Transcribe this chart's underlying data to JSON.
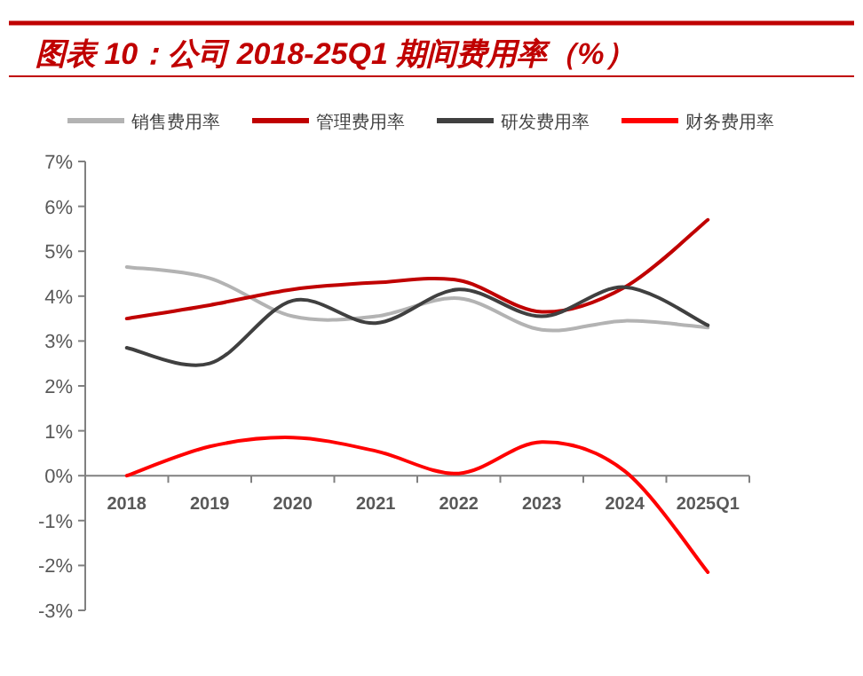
{
  "chart_data": {
    "type": "line",
    "title": "图表 10：公司 2018-25Q1 期间费用率（%）",
    "categories": [
      "2018",
      "2019",
      "2020",
      "2021",
      "2022",
      "2023",
      "2024",
      "2025Q1"
    ],
    "series": [
      {
        "name": "销售费用率",
        "color": "#b3b3b3",
        "values": [
          4.65,
          4.4,
          3.55,
          3.55,
          3.95,
          3.25,
          3.45,
          3.3
        ]
      },
      {
        "name": "管理费用率",
        "color": "#c00000",
        "values": [
          3.5,
          3.8,
          4.15,
          4.3,
          4.35,
          3.65,
          4.2,
          5.7
        ]
      },
      {
        "name": "研发费用率",
        "color": "#404040",
        "values": [
          2.85,
          2.5,
          3.9,
          3.4,
          4.15,
          3.55,
          4.2,
          3.35
        ]
      },
      {
        "name": "财务费用率",
        "color": "#ff0000",
        "values": [
          0.0,
          0.65,
          0.85,
          0.55,
          0.05,
          0.75,
          0.1,
          -2.15
        ]
      }
    ],
    "ylim": [
      -3,
      7
    ],
    "yticks": [
      {
        "value": -3,
        "label": "-3%"
      },
      {
        "value": -2,
        "label": "-2%"
      },
      {
        "value": -1,
        "label": "-1%"
      },
      {
        "value": 0,
        "label": "0%"
      },
      {
        "value": 1,
        "label": "1%"
      },
      {
        "value": 2,
        "label": "2%"
      },
      {
        "value": 3,
        "label": "3%"
      },
      {
        "value": 4,
        "label": "4%"
      },
      {
        "value": 5,
        "label": "5%"
      },
      {
        "value": 6,
        "label": "6%"
      },
      {
        "value": 7,
        "label": "7%"
      }
    ],
    "legend": "top",
    "grid": false,
    "marker": "none",
    "line_style": "solid"
  }
}
